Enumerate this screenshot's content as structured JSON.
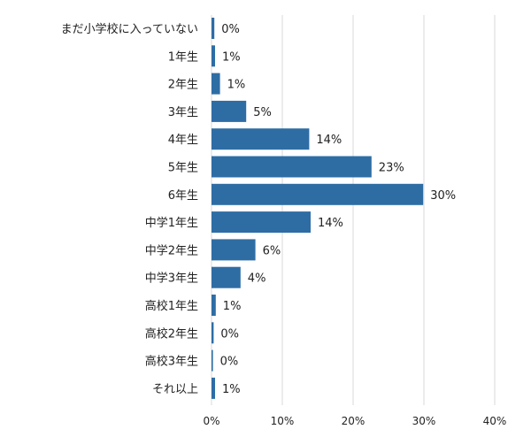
{
  "chart_data": {
    "type": "bar",
    "orientation": "horizontal",
    "categories": [
      "まだ小学校に入っていない",
      "1年生",
      "2年生",
      "3年生",
      "4年生",
      "5年生",
      "6年生",
      "中学1年生",
      "中学2年生",
      "中学3年生",
      "高校1年生",
      "高校2年生",
      "高校3年生",
      "それ以上"
    ],
    "values": [
      0.4,
      0.5,
      1.2,
      4.9,
      13.8,
      22.6,
      29.9,
      14.0,
      6.2,
      4.1,
      0.6,
      0.3,
      0.2,
      0.5
    ],
    "value_labels": [
      "0%",
      "1%",
      "1%",
      "5%",
      "14%",
      "23%",
      "30%",
      "14%",
      "6%",
      "4%",
      "1%",
      "0%",
      "0%",
      "1%"
    ],
    "xlim": [
      0,
      40
    ],
    "x_ticks": [
      0,
      10,
      20,
      30,
      40
    ],
    "x_tick_labels": [
      "0%",
      "10%",
      "20%",
      "30%",
      "40%"
    ],
    "grid": true,
    "bar_color": "#2e6da4",
    "title": "",
    "xlabel": "",
    "ylabel": ""
  }
}
